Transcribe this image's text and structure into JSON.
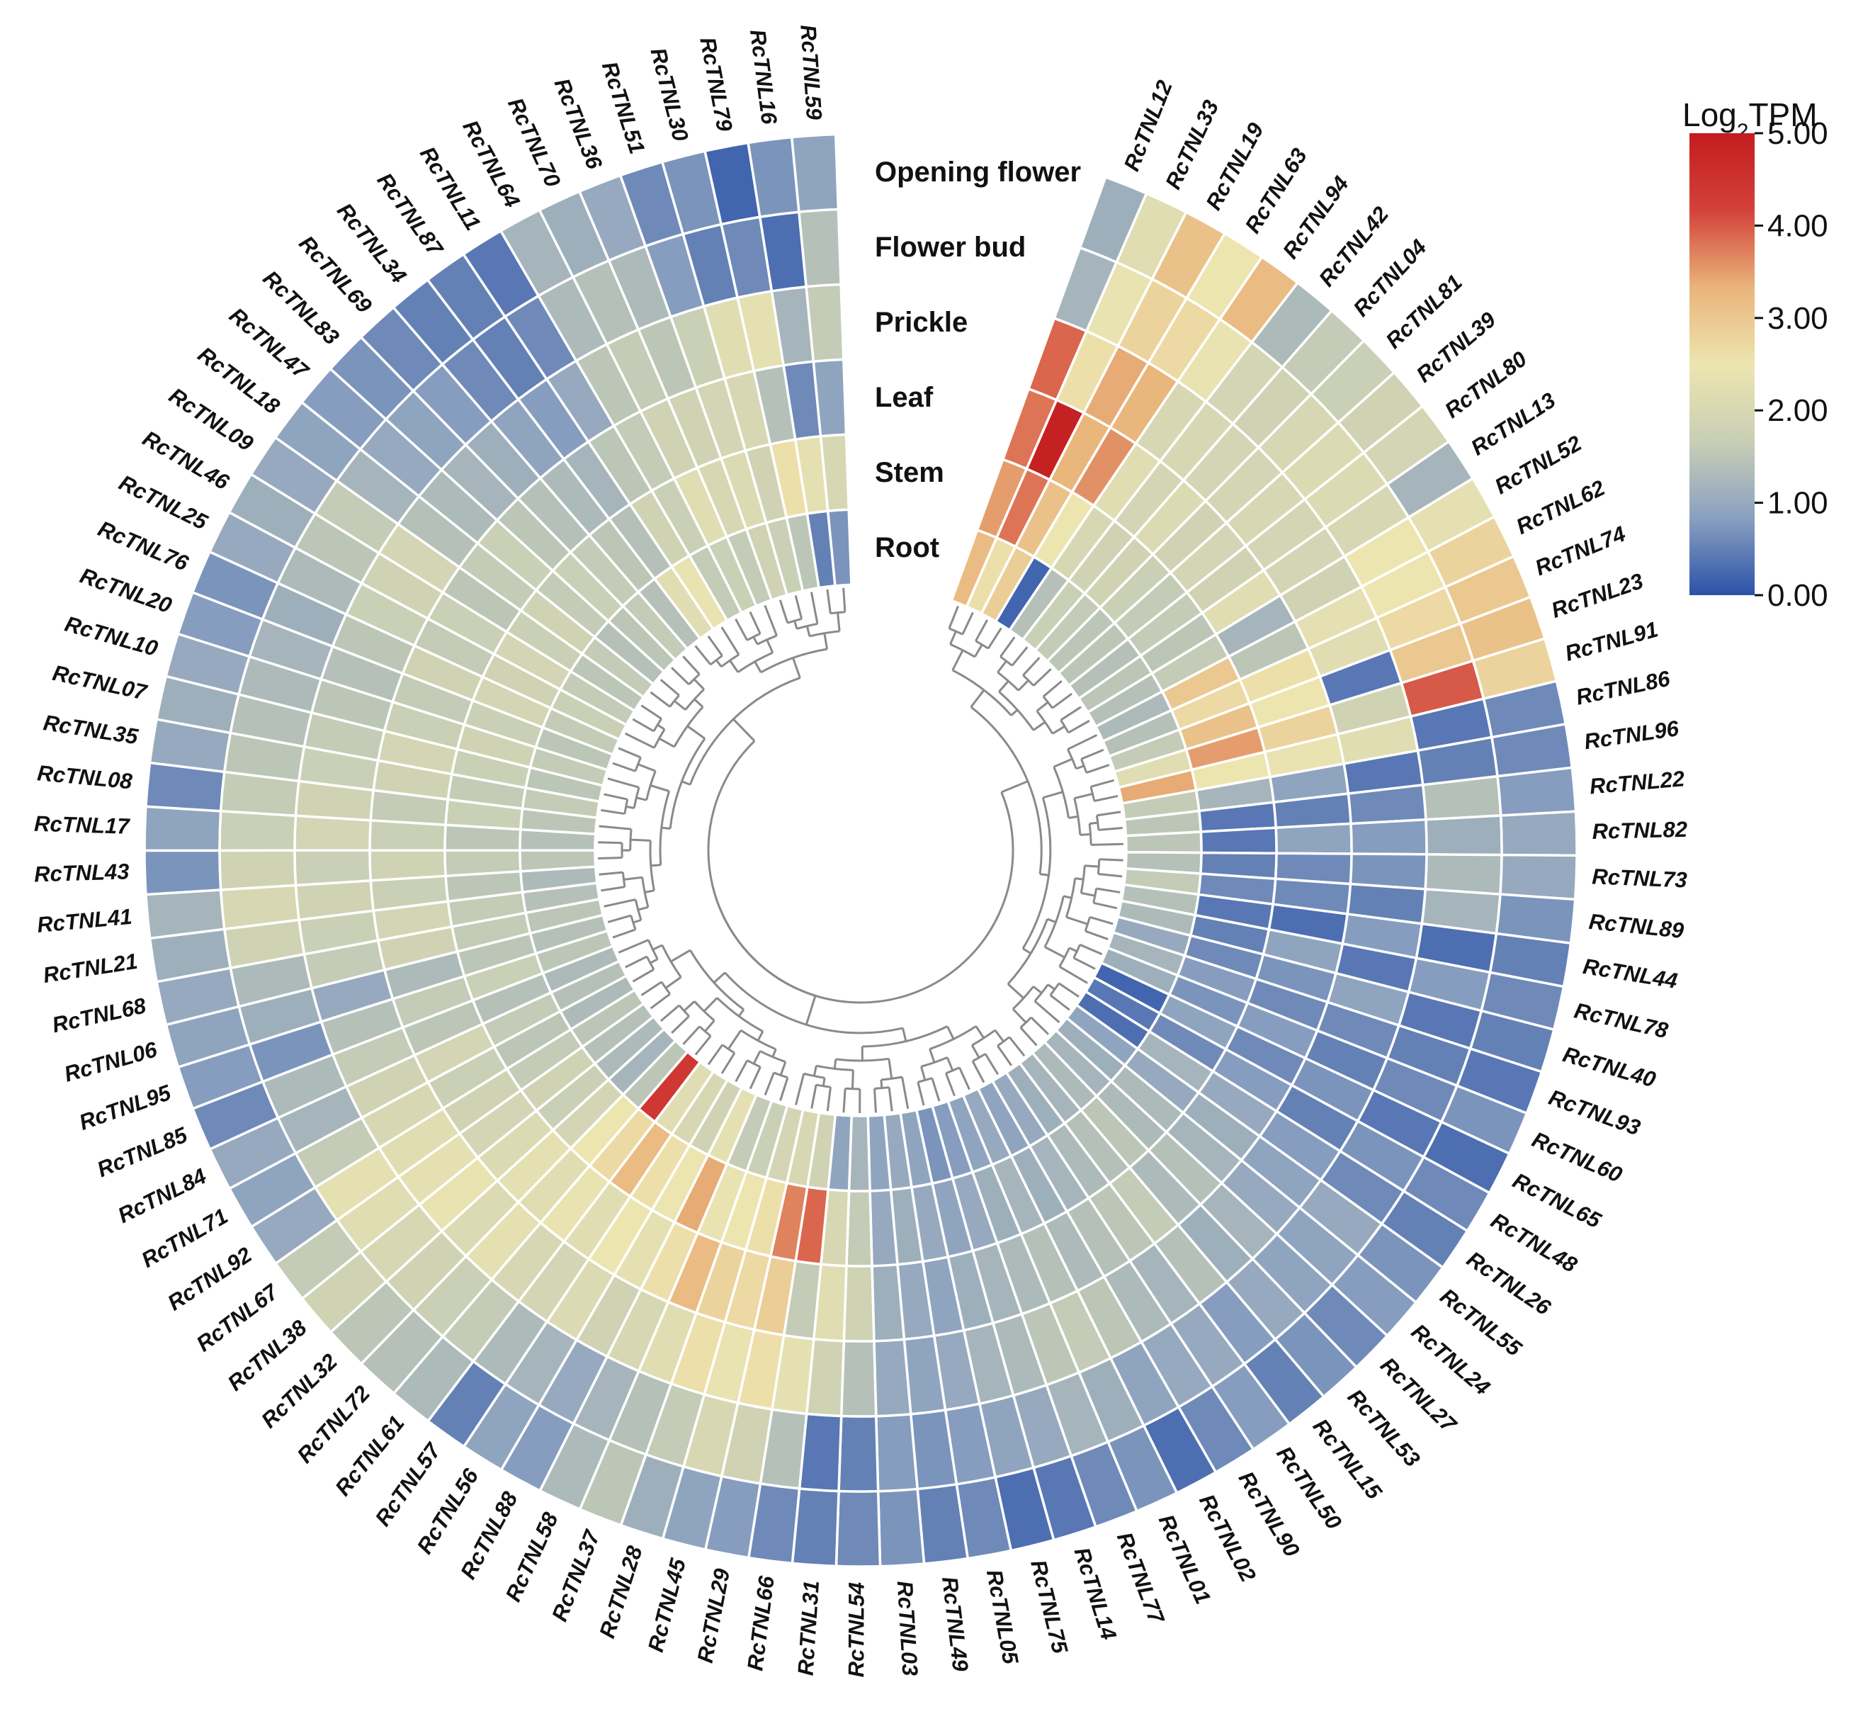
{
  "chart_data": {
    "type": "heatmap",
    "title": "",
    "layout": "circular",
    "rings": [
      "Opening flower",
      "Flower bud",
      "Prickle",
      "Leaf",
      "Stem",
      "Root"
    ],
    "legend": {
      "title_main": "Log",
      "title_sub": "2",
      "title_tail": "TPM",
      "range": [
        0,
        5
      ],
      "ticks": [
        "5.00",
        "4.00",
        "3.00",
        "2.00",
        "1.00",
        "0.00"
      ],
      "colors": [
        "#2a52a8",
        "#8aa0c0",
        "#c9cfb5",
        "#ede5b0",
        "#e9b47a",
        "#d3423a",
        "#c41c1f"
      ]
    },
    "genes": [
      {
        "name": "RcTNL12",
        "values": [
          1.1,
          1.2,
          3.9,
          3.8,
          3.5,
          3.2
        ]
      },
      {
        "name": "RcTNL33",
        "values": [
          2.2,
          2.4,
          2.6,
          4.9,
          3.8,
          2.6
        ]
      },
      {
        "name": "RcTNL19",
        "values": [
          3.1,
          2.8,
          3.4,
          3.3,
          3.1,
          2.9
        ]
      },
      {
        "name": "RcTNL63",
        "values": [
          2.5,
          2.7,
          3.3,
          3.6,
          2.5,
          0.2
        ]
      },
      {
        "name": "RcTNL94",
        "values": [
          3.2,
          2.4,
          2.0,
          2.2,
          2.0,
          1.4
        ]
      },
      {
        "name": "RcTNL42",
        "values": [
          1.3,
          1.9,
          2.0,
          1.9,
          1.8,
          1.7
        ]
      },
      {
        "name": "RcTNL04",
        "values": [
          1.6,
          1.8,
          1.9,
          2.1,
          1.8,
          1.6
        ]
      },
      {
        "name": "RcTNL81",
        "values": [
          1.7,
          2.0,
          1.9,
          1.8,
          1.7,
          1.5
        ]
      },
      {
        "name": "RcTNL39",
        "values": [
          1.8,
          2.1,
          2.0,
          1.9,
          1.6,
          1.5
        ]
      },
      {
        "name": "RcTNL80",
        "values": [
          1.9,
          2.1,
          1.9,
          1.8,
          1.6,
          1.4
        ]
      },
      {
        "name": "RcTNL13",
        "values": [
          1.2,
          2.0,
          1.9,
          2.2,
          1.5,
          1.5
        ]
      },
      {
        "name": "RcTNL52",
        "values": [
          2.3,
          2.5,
          1.8,
          1.2,
          1.6,
          1.4
        ]
      },
      {
        "name": "RcTNL62",
        "values": [
          2.8,
          2.5,
          2.3,
          1.5,
          3.0,
          1.3
        ]
      },
      {
        "name": "RcTNL74",
        "values": [
          3.0,
          2.7,
          2.2,
          2.6,
          2.7,
          1.4
        ]
      },
      {
        "name": "RcTNL23",
        "values": [
          3.1,
          3.0,
          0.4,
          2.5,
          3.1,
          1.6
        ]
      },
      {
        "name": "RcTNL91",
        "values": [
          2.8,
          4.0,
          1.8,
          2.8,
          3.5,
          2.2
        ]
      },
      {
        "name": "RcTNL86",
        "values": [
          0.6,
          0.4,
          2.2,
          2.4,
          2.5,
          3.4
        ]
      },
      {
        "name": "RcTNL96",
        "values": [
          0.6,
          0.5,
          0.4,
          0.9,
          1.2,
          1.6
        ]
      },
      {
        "name": "RcTNL22",
        "values": [
          0.8,
          1.4,
          0.6,
          0.5,
          0.4,
          1.5
        ]
      },
      {
        "name": "RcTNL82",
        "values": [
          1.0,
          1.1,
          0.8,
          0.9,
          0.4,
          1.5
        ]
      },
      {
        "name": "RcTNL73",
        "values": [
          1.0,
          1.3,
          0.7,
          0.6,
          0.5,
          1.4
        ]
      },
      {
        "name": "RcTNL89",
        "values": [
          0.7,
          1.2,
          0.5,
          0.6,
          0.6,
          1.6
        ]
      },
      {
        "name": "RcTNL44",
        "values": [
          0.5,
          0.3,
          0.8,
          0.3,
          0.4,
          1.4
        ]
      },
      {
        "name": "RcTNL78",
        "values": [
          0.6,
          0.8,
          0.4,
          0.9,
          0.5,
          1.3
        ]
      },
      {
        "name": "RcTNL40",
        "values": [
          0.5,
          0.4,
          0.9,
          0.7,
          0.6,
          1.0
        ]
      },
      {
        "name": "RcTNL93",
        "values": [
          0.4,
          0.5,
          0.6,
          0.6,
          0.8,
          1.2
        ]
      },
      {
        "name": "RcTNL60",
        "values": [
          0.7,
          0.6,
          0.5,
          0.8,
          0.7,
          1.1
        ]
      },
      {
        "name": "RcTNL65",
        "values": [
          0.3,
          0.4,
          0.7,
          0.6,
          0.9,
          0.2
        ]
      },
      {
        "name": "RcTNL48",
        "values": [
          0.6,
          0.7,
          0.5,
          0.8,
          0.6,
          0.4
        ]
      },
      {
        "name": "RcTNL26",
        "values": [
          0.5,
          0.6,
          0.8,
          1.0,
          1.2,
          0.3
        ]
      },
      {
        "name": "RcTNL55",
        "values": [
          0.7,
          1.0,
          0.9,
          1.1,
          1.0,
          0.9
        ]
      },
      {
        "name": "RcTNL24",
        "values": [
          0.8,
          0.9,
          1.0,
          1.2,
          1.3,
          1.1
        ]
      },
      {
        "name": "RcTNL27",
        "values": [
          0.6,
          0.9,
          1.2,
          1.4,
          1.3,
          1.2
        ]
      },
      {
        "name": "RcTNL53",
        "values": [
          0.7,
          1.0,
          1.1,
          1.3,
          1.5,
          1.3
        ]
      },
      {
        "name": "RcTNL15",
        "values": [
          0.5,
          0.8,
          1.4,
          1.6,
          1.4,
          1.2
        ]
      },
      {
        "name": "RcTNL50",
        "values": [
          0.8,
          1.0,
          1.2,
          1.5,
          1.3,
          1.1
        ]
      },
      {
        "name": "RcTNL90",
        "values": [
          0.6,
          1.0,
          1.3,
          1.4,
          1.2,
          1.0
        ]
      },
      {
        "name": "RcTNL02",
        "values": [
          0.3,
          0.9,
          1.5,
          1.3,
          1.1,
          0.9
        ]
      },
      {
        "name": "RcTNL01",
        "values": [
          0.7,
          1.1,
          1.6,
          1.4,
          1.2,
          1.0
        ]
      },
      {
        "name": "RcTNL77",
        "values": [
          0.6,
          1.2,
          1.5,
          1.3,
          1.1,
          0.9
        ]
      },
      {
        "name": "RcTNL14",
        "values": [
          0.4,
          1.0,
          1.3,
          1.2,
          1.0,
          0.8
        ]
      },
      {
        "name": "RcTNL75",
        "values": [
          0.3,
          0.9,
          1.2,
          1.1,
          0.9,
          0.7
        ]
      },
      {
        "name": "RcTNL05",
        "values": [
          0.6,
          0.8,
          1.0,
          0.9,
          1.0,
          0.9
        ]
      },
      {
        "name": "RcTNL49",
        "values": [
          0.5,
          0.7,
          0.9,
          1.0,
          1.1,
          1.0
        ]
      },
      {
        "name": "RcTNL03",
        "values": [
          0.7,
          0.8,
          1.0,
          1.1,
          1.0,
          0.9
        ]
      },
      {
        "name": "RcTNL54",
        "values": [
          0.6,
          0.5,
          1.4,
          1.8,
          1.6,
          1.2
        ]
      },
      {
        "name": "RcTNL31",
        "values": [
          0.5,
          0.4,
          1.8,
          2.2,
          2.0,
          0.9
        ]
      },
      {
        "name": "RcTNL66",
        "values": [
          0.6,
          1.4,
          2.3,
          1.6,
          3.9,
          1.8
        ]
      },
      {
        "name": "RcTNL29",
        "values": [
          0.8,
          1.8,
          2.6,
          2.9,
          3.7,
          2.0
        ]
      },
      {
        "name": "RcTNL45",
        "values": [
          0.9,
          2.0,
          2.4,
          2.7,
          2.6,
          1.9
        ]
      },
      {
        "name": "RcTNL28",
        "values": [
          1.1,
          1.6,
          2.6,
          2.8,
          2.5,
          1.7
        ]
      },
      {
        "name": "RcTNL37",
        "values": [
          1.5,
          1.4,
          2.2,
          3.2,
          2.4,
          1.6
        ]
      },
      {
        "name": "RcTNL58",
        "values": [
          1.3,
          1.2,
          2.0,
          2.6,
          3.4,
          2.3
        ]
      },
      {
        "name": "RcTNL88",
        "values": [
          0.8,
          1.0,
          1.8,
          2.3,
          2.5,
          1.8
        ]
      },
      {
        "name": "RcTNL56",
        "values": [
          0.9,
          1.2,
          2.1,
          2.5,
          2.6,
          2.0
        ]
      },
      {
        "name": "RcTNL57",
        "values": [
          0.5,
          1.3,
          1.9,
          2.2,
          3.2,
          2.2
        ]
      },
      {
        "name": "RcTNL61",
        "values": [
          1.3,
          1.6,
          2.0,
          2.4,
          2.7,
          4.4
        ]
      },
      {
        "name": "RcTNL72",
        "values": [
          1.4,
          1.7,
          2.3,
          2.2,
          2.5,
          1.5
        ]
      },
      {
        "name": "RcTNL32",
        "values": [
          1.5,
          1.8,
          2.1,
          2.3,
          1.9,
          1.2
        ]
      },
      {
        "name": "RcTNL38",
        "values": [
          1.8,
          2.0,
          2.4,
          2.1,
          1.7,
          1.3
        ]
      },
      {
        "name": "RcTNL67",
        "values": [
          1.6,
          2.2,
          2.3,
          1.9,
          1.8,
          1.4
        ]
      },
      {
        "name": "RcTNL92",
        "values": [
          1.0,
          2.3,
          2.2,
          1.8,
          1.6,
          1.5
        ]
      },
      {
        "name": "RcTNL71",
        "values": [
          0.9,
          1.6,
          2.0,
          1.7,
          1.5,
          1.3
        ]
      },
      {
        "name": "RcTNL84",
        "values": [
          1.0,
          1.2,
          1.8,
          1.9,
          1.6,
          1.4
        ]
      },
      {
        "name": "RcTNL85",
        "values": [
          0.6,
          1.3,
          1.6,
          1.5,
          1.4,
          1.3
        ]
      },
      {
        "name": "RcTNL95",
        "values": [
          0.8,
          0.7,
          1.4,
          1.6,
          1.7,
          1.5
        ]
      },
      {
        "name": "RcTNL06",
        "values": [
          0.9,
          1.1,
          1.0,
          1.3,
          1.5,
          1.4
        ]
      },
      {
        "name": "RcTNL68",
        "values": [
          1.0,
          1.3,
          1.6,
          1.8,
          1.6,
          1.5
        ]
      },
      {
        "name": "RcTNL21",
        "values": [
          1.1,
          1.8,
          1.7,
          1.9,
          1.6,
          1.4
        ]
      },
      {
        "name": "RcTNL41",
        "values": [
          1.2,
          2.0,
          1.8,
          1.7,
          1.5,
          1.3
        ]
      },
      {
        "name": "RcTNL43",
        "values": [
          0.7,
          1.8,
          1.7,
          1.8,
          1.6,
          1.5
        ]
      },
      {
        "name": "RcTNL17",
        "values": [
          0.9,
          1.7,
          1.9,
          1.7,
          1.5,
          1.4
        ]
      },
      {
        "name": "RcTNL08",
        "values": [
          0.6,
          1.6,
          1.8,
          1.6,
          1.7,
          1.5
        ]
      },
      {
        "name": "RcTNL35",
        "values": [
          1.0,
          1.5,
          1.7,
          1.8,
          1.6,
          1.6
        ]
      },
      {
        "name": "RcTNL07",
        "values": [
          1.1,
          1.4,
          1.6,
          1.9,
          1.7,
          1.5
        ]
      },
      {
        "name": "RcTNL10",
        "values": [
          1.0,
          1.3,
          1.5,
          1.7,
          1.8,
          1.6
        ]
      },
      {
        "name": "RcTNL20",
        "values": [
          0.8,
          1.2,
          1.4,
          1.6,
          1.7,
          1.5
        ]
      },
      {
        "name": "RcTNL76",
        "values": [
          0.7,
          1.1,
          1.5,
          1.8,
          1.9,
          1.6
        ]
      },
      {
        "name": "RcTNL25",
        "values": [
          1.0,
          1.3,
          1.7,
          1.6,
          1.8,
          1.7
        ]
      },
      {
        "name": "RcTNL46",
        "values": [
          1.1,
          1.5,
          1.8,
          1.7,
          1.9,
          1.6
        ]
      },
      {
        "name": "RcTNL09",
        "values": [
          1.0,
          1.6,
          1.9,
          1.5,
          1.7,
          1.5
        ]
      },
      {
        "name": "RcTNL18",
        "values": [
          0.9,
          1.2,
          1.4,
          1.6,
          1.8,
          1.6
        ]
      },
      {
        "name": "RcTNL47",
        "values": [
          0.8,
          1.0,
          1.3,
          1.7,
          1.6,
          1.4
        ]
      },
      {
        "name": "RcTNL83",
        "values": [
          0.7,
          0.9,
          1.2,
          1.5,
          1.7,
          1.5
        ]
      },
      {
        "name": "RcTNL69",
        "values": [
          0.6,
          0.8,
          1.1,
          1.4,
          1.6,
          1.6
        ]
      },
      {
        "name": "RcTNL34",
        "values": [
          0.5,
          0.6,
          0.9,
          1.3,
          1.5,
          1.4
        ]
      },
      {
        "name": "RcTNL87",
        "values": [
          0.5,
          0.5,
          0.8,
          1.2,
          1.4,
          2.2
        ]
      },
      {
        "name": "RcTNL11",
        "values": [
          0.4,
          0.6,
          1.0,
          1.5,
          1.8,
          2.4
        ]
      },
      {
        "name": "RcTNL64",
        "values": [
          1.2,
          1.3,
          1.5,
          1.6,
          1.7,
          1.6
        ]
      },
      {
        "name": "RcTNL70",
        "values": [
          1.1,
          1.4,
          1.6,
          1.8,
          2.2,
          1.7
        ]
      },
      {
        "name": "RcTNL36",
        "values": [
          1.0,
          1.3,
          1.5,
          1.8,
          2.0,
          1.6
        ]
      },
      {
        "name": "RcTNL51",
        "values": [
          0.6,
          0.8,
          1.7,
          1.9,
          2.1,
          1.8
        ]
      },
      {
        "name": "RcTNL30",
        "values": [
          0.7,
          0.5,
          2.2,
          2.0,
          1.8,
          1.7
        ]
      },
      {
        "name": "RcTNL79",
        "values": [
          0.2,
          0.6,
          2.3,
          1.4,
          2.6,
          1.5
        ]
      },
      {
        "name": "RcTNL16",
        "values": [
          0.7,
          0.3,
          1.2,
          0.6,
          2.3,
          0.5
        ]
      },
      {
        "name": "RcTNL59",
        "values": [
          0.9,
          1.4,
          1.6,
          0.9,
          2.0,
          0.7
        ]
      }
    ]
  }
}
